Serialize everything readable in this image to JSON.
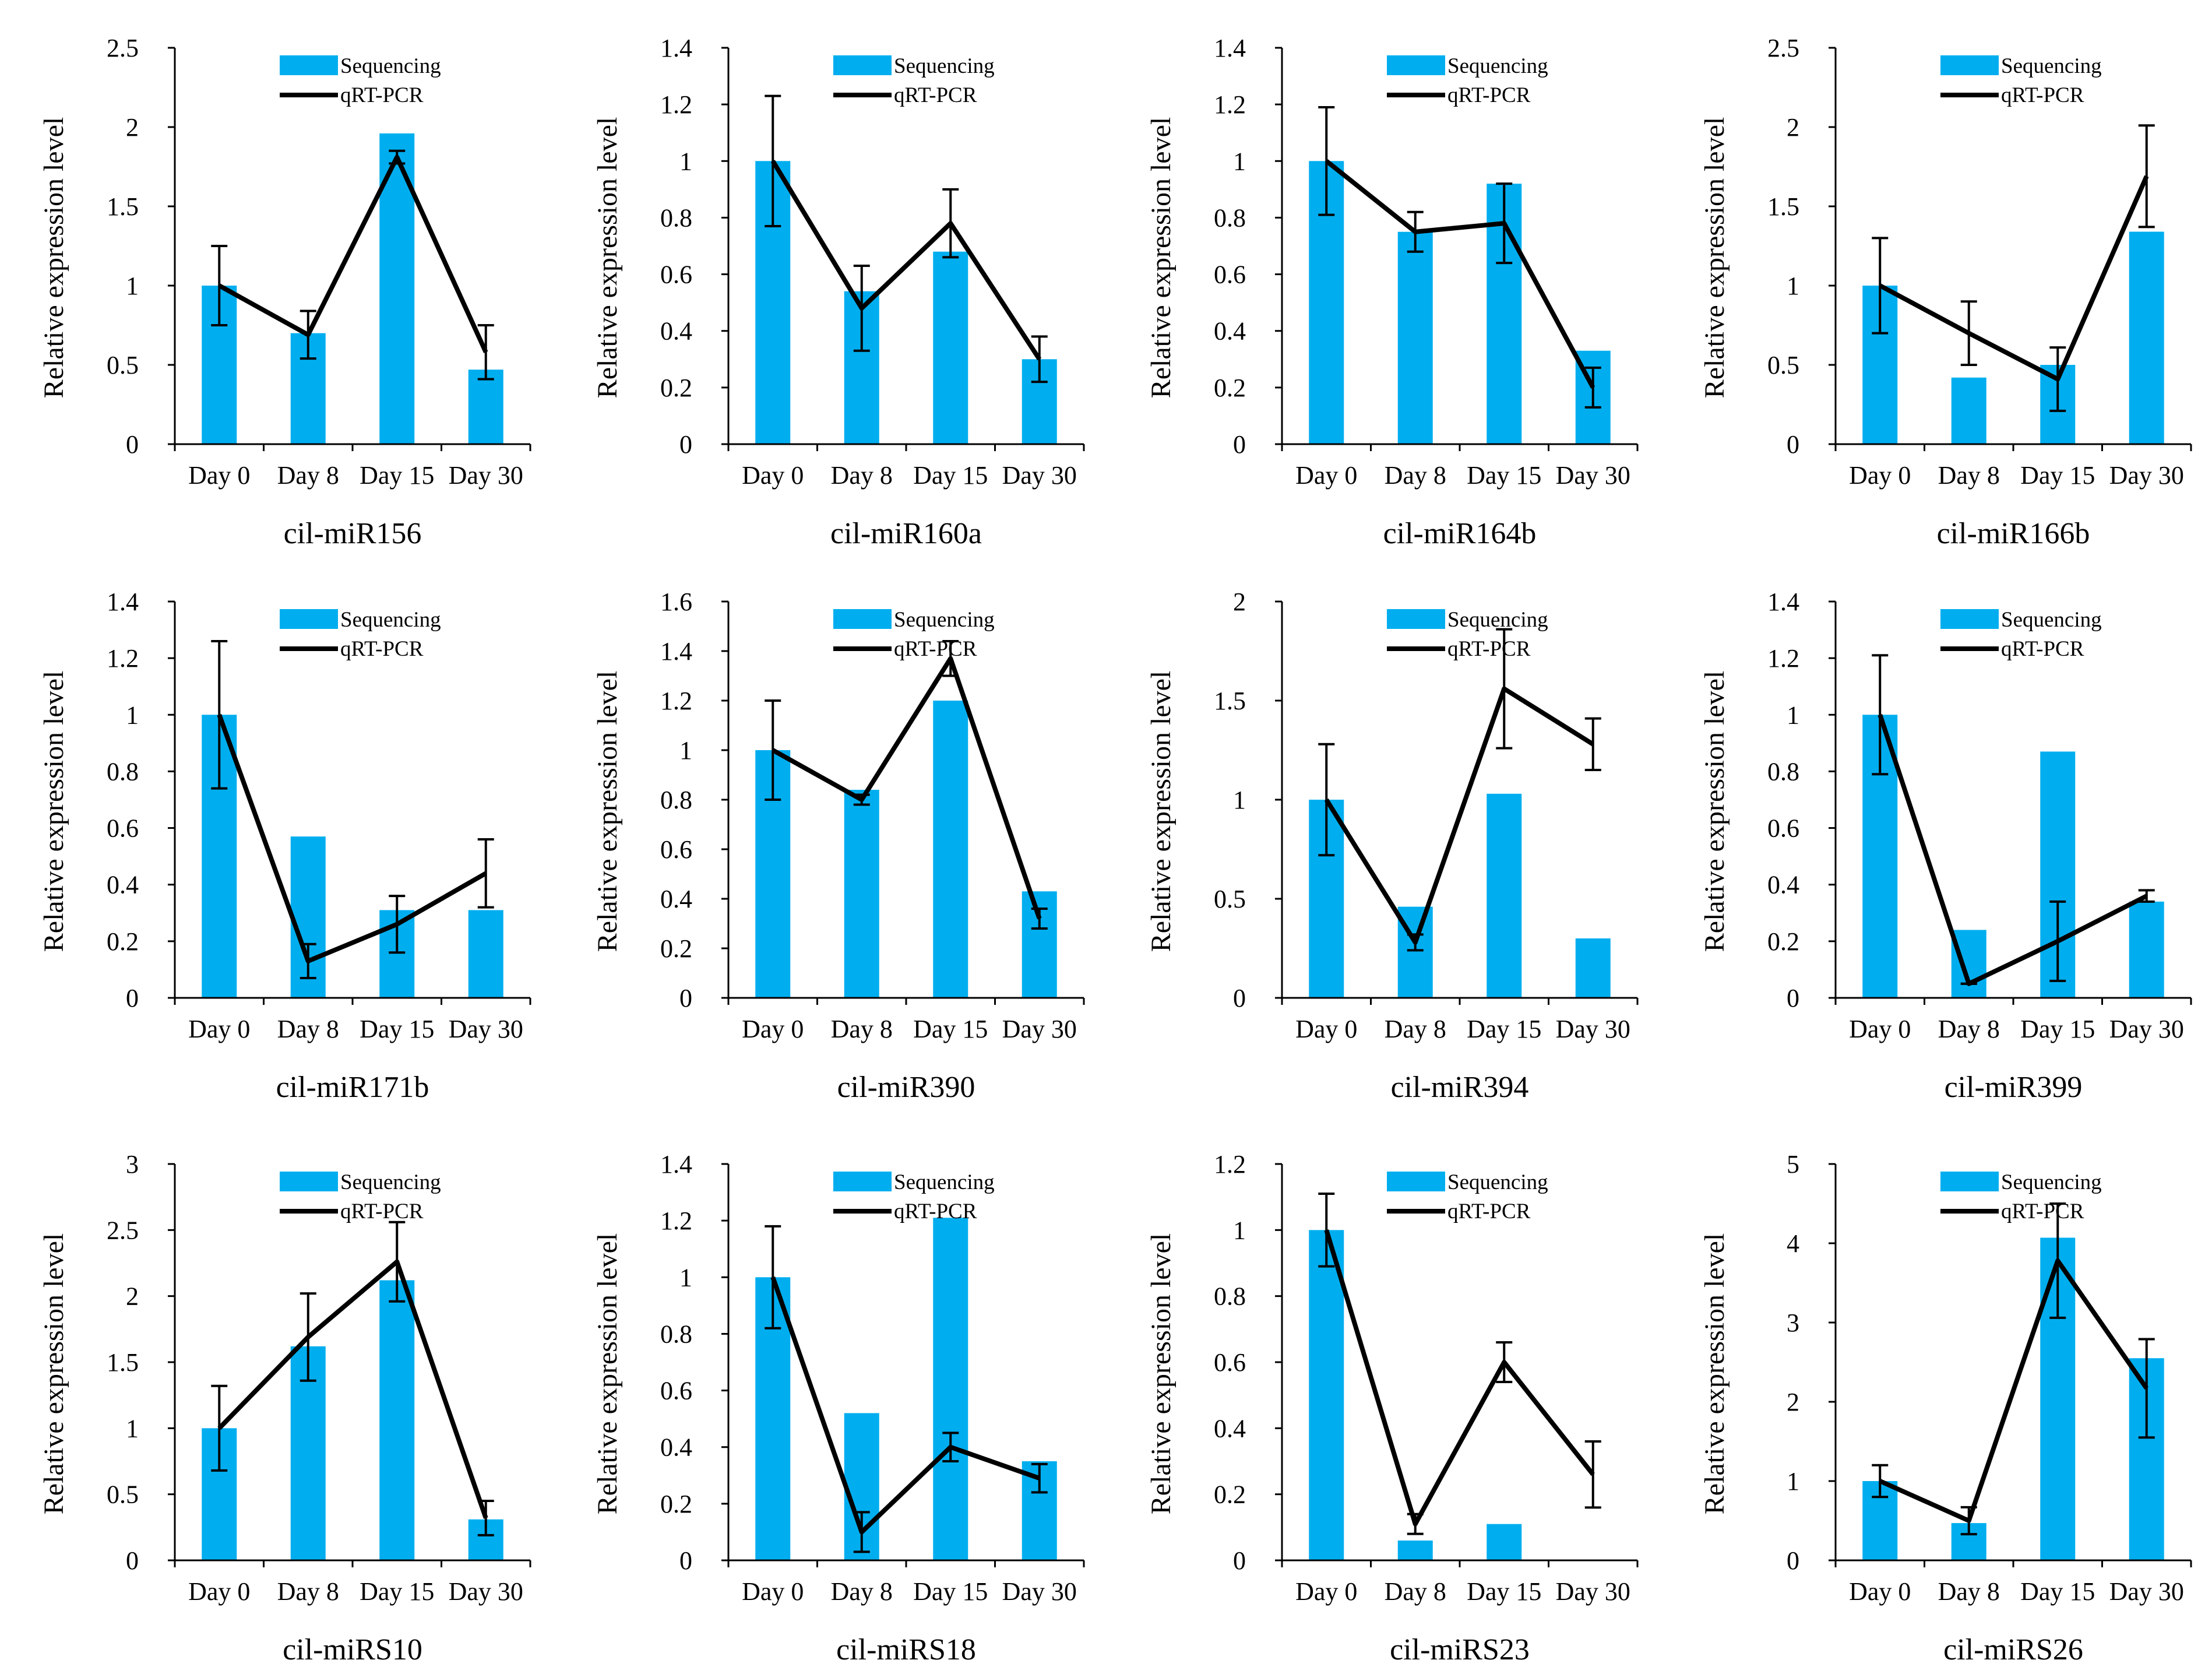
{
  "colors": {
    "bar": "#00AEEF",
    "line": "#000000",
    "axis": "#000000"
  },
  "legend": {
    "bar_label": "Sequencing",
    "line_label": "qRT-PCR"
  },
  "chart_data": [
    {
      "type": "bar+line",
      "title": "cil-miR156",
      "ylabel": "Relative expression level",
      "categories": [
        "Day 0",
        "Day 8",
        "Day 15",
        "Day 30"
      ],
      "ylim": [
        0,
        2.5
      ],
      "yticks": [
        "0",
        "0.5",
        "1",
        "1.5",
        "2",
        "2.5"
      ],
      "series": [
        {
          "name": "Sequencing",
          "kind": "bar",
          "values": [
            1.0,
            0.7,
            1.96,
            0.47
          ]
        },
        {
          "name": "qRT-PCR",
          "kind": "line",
          "values": [
            1.0,
            0.69,
            1.81,
            0.58
          ],
          "errors": [
            0.25,
            0.15,
            0.04,
            0.17
          ]
        }
      ]
    },
    {
      "type": "bar+line",
      "title": "cil-miR160a",
      "ylabel": "Relative expression level",
      "categories": [
        "Day 0",
        "Day 8",
        "Day 15",
        "Day 30"
      ],
      "ylim": [
        0,
        1.4
      ],
      "yticks": [
        "0",
        "0.2",
        "0.4",
        "0.6",
        "0.8",
        "1",
        "1.2",
        "1.4"
      ],
      "series": [
        {
          "name": "Sequencing",
          "kind": "bar",
          "values": [
            1.0,
            0.54,
            0.68,
            0.3
          ]
        },
        {
          "name": "qRT-PCR",
          "kind": "line",
          "values": [
            1.0,
            0.48,
            0.78,
            0.3
          ],
          "errors": [
            0.23,
            0.15,
            0.12,
            0.08
          ]
        }
      ]
    },
    {
      "type": "bar+line",
      "title": "cil-miR164b",
      "ylabel": "Relative expression level",
      "categories": [
        "Day 0",
        "Day 8",
        "Day 15",
        "Day 30"
      ],
      "ylim": [
        0,
        1.4
      ],
      "yticks": [
        "0",
        "0.2",
        "0.4",
        "0.6",
        "0.8",
        "1",
        "1.2",
        "1.4"
      ],
      "series": [
        {
          "name": "Sequencing",
          "kind": "bar",
          "values": [
            1.0,
            0.75,
            0.92,
            0.33
          ]
        },
        {
          "name": "qRT-PCR",
          "kind": "line",
          "values": [
            1.0,
            0.75,
            0.78,
            0.2
          ],
          "errors": [
            0.19,
            0.07,
            0.14,
            0.07
          ]
        }
      ]
    },
    {
      "type": "bar+line",
      "title": "cil-miR166b",
      "ylabel": "Relative expression level",
      "categories": [
        "Day 0",
        "Day 8",
        "Day 15",
        "Day 30"
      ],
      "ylim": [
        0,
        2.5
      ],
      "yticks": [
        "0",
        "0.5",
        "1",
        "1.5",
        "2",
        "2.5"
      ],
      "series": [
        {
          "name": "Sequencing",
          "kind": "bar",
          "values": [
            1.0,
            0.42,
            0.5,
            1.34
          ]
        },
        {
          "name": "qRT-PCR",
          "kind": "line",
          "values": [
            1.0,
            0.7,
            0.41,
            1.69
          ],
          "errors": [
            0.3,
            0.2,
            0.2,
            0.32
          ]
        }
      ]
    },
    {
      "type": "bar+line",
      "title": "cil-miR171b",
      "ylabel": "Relative expression level",
      "categories": [
        "Day 0",
        "Day 8",
        "Day 15",
        "Day 30"
      ],
      "ylim": [
        0,
        1.4
      ],
      "yticks": [
        "0",
        "0.2",
        "0.4",
        "0.6",
        "0.8",
        "1",
        "1.2",
        "1.4"
      ],
      "series": [
        {
          "name": "Sequencing",
          "kind": "bar",
          "values": [
            1.0,
            0.57,
            0.31,
            0.31
          ]
        },
        {
          "name": "qRT-PCR",
          "kind": "line",
          "values": [
            1.0,
            0.13,
            0.26,
            0.44
          ],
          "errors": [
            0.26,
            0.06,
            0.1,
            0.12
          ]
        }
      ]
    },
    {
      "type": "bar+line",
      "title": "cil-miR390",
      "ylabel": "Relative expression level",
      "categories": [
        "Day 0",
        "Day 8",
        "Day 15",
        "Day 30"
      ],
      "ylim": [
        0,
        1.6
      ],
      "yticks": [
        "0",
        "0.2",
        "0.4",
        "0.6",
        "0.8",
        "1",
        "1.2",
        "1.4",
        "1.6"
      ],
      "series": [
        {
          "name": "Sequencing",
          "kind": "bar",
          "values": [
            1.0,
            0.84,
            1.2,
            0.43
          ]
        },
        {
          "name": "qRT-PCR",
          "kind": "line",
          "values": [
            1.0,
            0.8,
            1.37,
            0.32
          ],
          "errors": [
            0.2,
            0.02,
            0.07,
            0.04
          ]
        }
      ]
    },
    {
      "type": "bar+line",
      "title": "cil-miR394",
      "ylabel": "Relative expression level",
      "categories": [
        "Day 0",
        "Day 8",
        "Day 15",
        "Day 30"
      ],
      "ylim": [
        0,
        2
      ],
      "yticks": [
        "0",
        "0.5",
        "1",
        "1.5",
        "2"
      ],
      "series": [
        {
          "name": "Sequencing",
          "kind": "bar",
          "values": [
            1.0,
            0.46,
            1.03,
            0.3
          ]
        },
        {
          "name": "qRT-PCR",
          "kind": "line",
          "values": [
            1.0,
            0.28,
            1.56,
            1.28
          ],
          "errors": [
            0.28,
            0.04,
            0.3,
            0.13
          ]
        }
      ]
    },
    {
      "type": "bar+line",
      "title": "cil-miR399",
      "ylabel": "Relative expression level",
      "categories": [
        "Day 0",
        "Day 8",
        "Day 15",
        "Day 30"
      ],
      "ylim": [
        0,
        1.4
      ],
      "yticks": [
        "0",
        "0.2",
        "0.4",
        "0.6",
        "0.8",
        "1",
        "1.2",
        "1.4"
      ],
      "series": [
        {
          "name": "Sequencing",
          "kind": "bar",
          "values": [
            1.0,
            0.24,
            0.87,
            0.34
          ]
        },
        {
          "name": "qRT-PCR",
          "kind": "line",
          "values": [
            1.0,
            0.05,
            0.2,
            0.36
          ],
          "errors": [
            0.21,
            0.0,
            0.14,
            0.02
          ]
        }
      ]
    },
    {
      "type": "bar+line",
      "title": "cil-miRS10",
      "ylabel": "Relative expression level",
      "categories": [
        "Day 0",
        "Day 8",
        "Day 15",
        "Day 30"
      ],
      "ylim": [
        0,
        3
      ],
      "yticks": [
        "0",
        "0.5",
        "1",
        "1.5",
        "2",
        "2.5",
        "3"
      ],
      "series": [
        {
          "name": "Sequencing",
          "kind": "bar",
          "values": [
            1.0,
            1.62,
            2.12,
            0.31
          ]
        },
        {
          "name": "qRT-PCR",
          "kind": "line",
          "values": [
            1.0,
            1.69,
            2.26,
            0.32
          ],
          "errors": [
            0.32,
            0.33,
            0.3,
            0.13
          ]
        }
      ]
    },
    {
      "type": "bar+line",
      "title": "cil-miRS18",
      "ylabel": "Relative expression level",
      "categories": [
        "Day 0",
        "Day 8",
        "Day 15",
        "Day 30"
      ],
      "ylim": [
        0,
        1.4
      ],
      "yticks": [
        "0",
        "0.2",
        "0.4",
        "0.6",
        "0.8",
        "1",
        "1.2",
        "1.4"
      ],
      "series": [
        {
          "name": "Sequencing",
          "kind": "bar",
          "values": [
            1.0,
            0.52,
            1.21,
            0.35
          ]
        },
        {
          "name": "qRT-PCR",
          "kind": "line",
          "values": [
            1.0,
            0.1,
            0.4,
            0.29
          ],
          "errors": [
            0.18,
            0.07,
            0.05,
            0.05
          ]
        }
      ]
    },
    {
      "type": "bar+line",
      "title": "cil-miRS23",
      "ylabel": "Relative expression level",
      "categories": [
        "Day 0",
        "Day 8",
        "Day 15",
        "Day 30"
      ],
      "ylim": [
        0,
        1.2
      ],
      "yticks": [
        "0",
        "0.2",
        "0.4",
        "0.6",
        "0.8",
        "1",
        "1.2"
      ],
      "series": [
        {
          "name": "Sequencing",
          "kind": "bar",
          "values": [
            1.0,
            0.06,
            0.11,
            0.0
          ]
        },
        {
          "name": "qRT-PCR",
          "kind": "line",
          "values": [
            1.0,
            0.11,
            0.6,
            0.26
          ],
          "errors": [
            0.11,
            0.03,
            0.06,
            0.1
          ]
        }
      ]
    },
    {
      "type": "bar+line",
      "title": "cil-miRS26",
      "ylabel": "Relative expression level",
      "categories": [
        "Day 0",
        "Day 8",
        "Day 15",
        "Day 30"
      ],
      "ylim": [
        0,
        5
      ],
      "yticks": [
        "0",
        "1",
        "2",
        "3",
        "4",
        "5"
      ],
      "series": [
        {
          "name": "Sequencing",
          "kind": "bar",
          "values": [
            1.0,
            0.47,
            4.07,
            2.55
          ]
        },
        {
          "name": "qRT-PCR",
          "kind": "line",
          "values": [
            1.0,
            0.5,
            3.78,
            2.17
          ],
          "errors": [
            0.2,
            0.17,
            0.72,
            0.62
          ]
        }
      ]
    }
  ]
}
